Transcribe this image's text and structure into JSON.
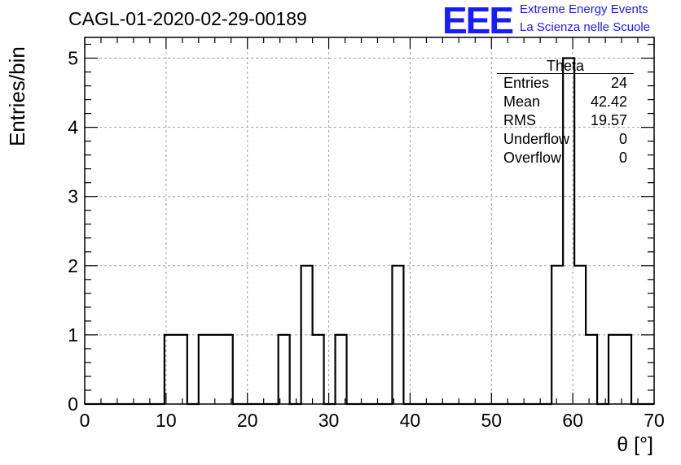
{
  "header": {
    "title": "CAGL-01-2020-02-29-00189",
    "logo_mark": "EEE",
    "logo_line1": "Extreme Energy Events",
    "logo_line2": "La Scienza nelle Scuole",
    "logo_color": "#1a1aff"
  },
  "stats_box": {
    "title": "Theta",
    "rows": [
      {
        "label": "Entries",
        "value": "24"
      },
      {
        "label": "Mean",
        "value": "42.42"
      },
      {
        "label": "RMS",
        "value": "19.57"
      },
      {
        "label": "Underflow",
        "value": "0"
      },
      {
        "label": "Overflow",
        "value": "0"
      }
    ]
  },
  "chart_data": {
    "type": "bar",
    "histogram": true,
    "title": "CAGL-01-2020-02-29-00189",
    "xlabel": "θ [°]",
    "ylabel": "Entries/bin",
    "xlim": [
      0,
      70
    ],
    "ylim": [
      0,
      5.3
    ],
    "x_ticks": [
      0,
      10,
      20,
      30,
      40,
      50,
      60,
      70
    ],
    "y_ticks": [
      0,
      1,
      2,
      3,
      4,
      5
    ],
    "grid": true,
    "line_color": "#000000",
    "bin_width": 1.4,
    "bin_start": 0,
    "bins": [
      {
        "x0": 9.8,
        "x1": 12.6,
        "count": 1
      },
      {
        "x0": 14.0,
        "x1": 18.2,
        "count": 1
      },
      {
        "x0": 23.8,
        "x1": 25.2,
        "count": 1
      },
      {
        "x0": 26.6,
        "x1": 28.0,
        "count": 2
      },
      {
        "x0": 28.0,
        "x1": 29.4,
        "count": 1
      },
      {
        "x0": 30.8,
        "x1": 32.2,
        "count": 1
      },
      {
        "x0": 37.8,
        "x1": 39.2,
        "count": 2
      },
      {
        "x0": 57.4,
        "x1": 58.8,
        "count": 2
      },
      {
        "x0": 58.8,
        "x1": 60.2,
        "count": 5
      },
      {
        "x0": 60.2,
        "x1": 61.6,
        "count": 2
      },
      {
        "x0": 61.6,
        "x1": 63.0,
        "count": 1
      },
      {
        "x0": 64.4,
        "x1": 67.2,
        "count": 1
      }
    ]
  }
}
